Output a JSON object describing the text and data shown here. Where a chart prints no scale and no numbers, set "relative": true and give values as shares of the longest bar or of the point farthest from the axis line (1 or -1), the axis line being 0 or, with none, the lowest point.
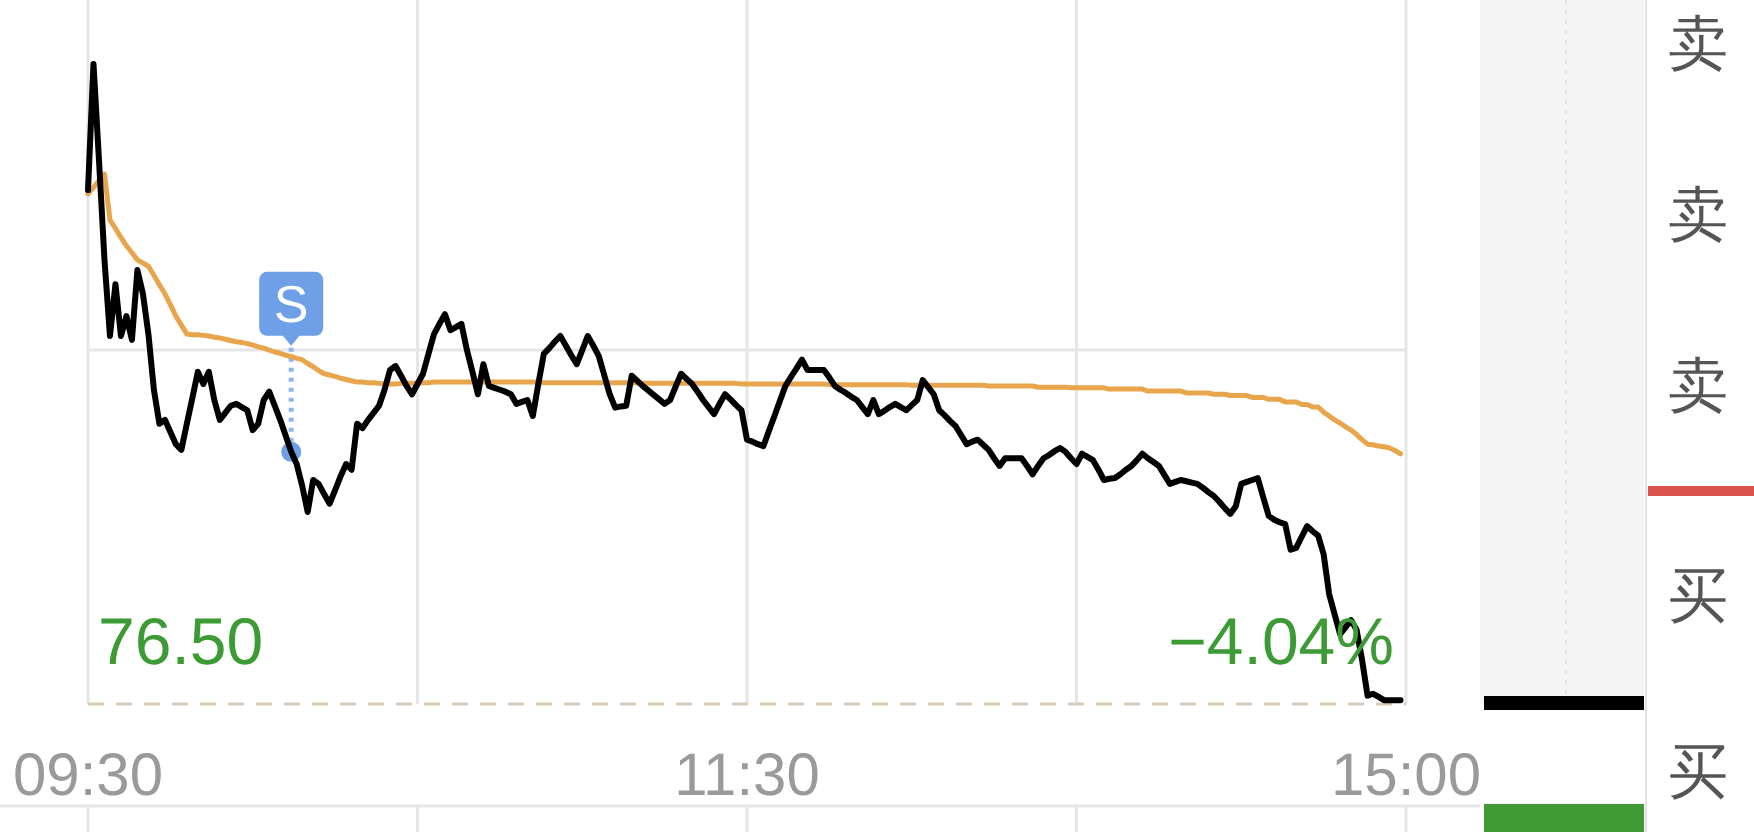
{
  "chart_data": {
    "type": "line",
    "relative": true,
    "categories": [
      "09:30",
      null,
      null,
      null,
      null,
      null,
      null,
      null,
      null,
      null,
      null,
      null,
      null,
      null,
      null,
      null,
      null,
      null,
      null,
      null,
      null,
      null,
      null,
      null,
      null,
      null,
      null,
      null,
      null,
      null,
      null,
      null,
      null,
      null,
      null,
      null,
      null,
      null,
      null,
      null,
      null,
      null,
      null,
      null,
      null,
      null,
      null,
      null,
      null,
      null,
      null,
      null,
      null,
      null,
      null,
      null,
      null,
      null,
      null,
      null,
      null,
      null,
      null,
      null,
      null,
      null,
      null,
      null,
      null,
      null,
      null,
      null,
      null,
      null,
      null,
      null,
      null,
      null,
      null,
      null,
      null,
      null,
      null,
      null,
      null,
      null,
      null,
      null,
      null,
      null,
      null,
      null,
      null,
      null,
      null,
      null,
      null,
      null,
      null,
      null,
      null,
      null,
      null,
      null,
      null,
      null,
      null,
      null,
      null,
      null,
      null,
      null,
      null,
      null,
      null,
      null,
      null,
      null,
      null,
      null,
      "11:30",
      null,
      null,
      null,
      null,
      null,
      null,
      null,
      null,
      null,
      null,
      null,
      null,
      null,
      null,
      null,
      null,
      null,
      null,
      null,
      null,
      null,
      null,
      null,
      null,
      null,
      null,
      null,
      null,
      null,
      null,
      null,
      null,
      null,
      null,
      null,
      null,
      null,
      null,
      null,
      null,
      null,
      null,
      null,
      null,
      null,
      null,
      null,
      null,
      null,
      null,
      null,
      null,
      null,
      null,
      null,
      null,
      null,
      null,
      null,
      null,
      null,
      null,
      null,
      null,
      null,
      null,
      null,
      null,
      null,
      null,
      null,
      null,
      null,
      null,
      null,
      null,
      null,
      null,
      null,
      null,
      null,
      null,
      null,
      null,
      null,
      null,
      null,
      null,
      null,
      null,
      null,
      null,
      null,
      null,
      null,
      null,
      null,
      null,
      null,
      null,
      null,
      null,
      null,
      null,
      null,
      null,
      null,
      null,
      null,
      null,
      null,
      null,
      null,
      null,
      null,
      null,
      null,
      null,
      null,
      "15:00"
    ],
    "grid": "x",
    "ref_lines": [
      {
        "axis": "y",
        "value": 0.553,
        "color": "#e6e6e6"
      }
    ],
    "series": [
      {
        "color": "#000000",
        "values": [
          0.803,
          1.0,
          0.85,
          0.694,
          0.575,
          0.656,
          0.575,
          0.606,
          0.569,
          0.678,
          0.641,
          0.578,
          0.491,
          0.438,
          0.444,
          0.425,
          0.406,
          0.397,
          0.438,
          0.478,
          0.519,
          0.5,
          0.519,
          0.475,
          0.444,
          0.455,
          0.466,
          0.469,
          0.464,
          0.459,
          0.428,
          0.438,
          0.475,
          0.488,
          0.466,
          0.444,
          0.419,
          0.394,
          0.375,
          0.341,
          0.3,
          0.35,
          0.344,
          0.328,
          0.313,
          0.334,
          0.356,
          0.375,
          0.366,
          0.438,
          0.431,
          0.444,
          0.455,
          0.466,
          0.491,
          0.522,
          0.528,
          0.513,
          0.497,
          0.484,
          0.5,
          0.516,
          0.547,
          0.578,
          0.594,
          0.609,
          0.584,
          0.589,
          0.594,
          0.553,
          0.519,
          0.484,
          0.531,
          0.497,
          0.494,
          0.491,
          0.488,
          0.484,
          0.469,
          0.472,
          0.475,
          0.45,
          0.5,
          0.547,
          0.556,
          0.566,
          0.575,
          0.56,
          0.545,
          0.531,
          0.553,
          0.575,
          0.56,
          0.544,
          0.514,
          0.484,
          0.463,
          0.465,
          0.466,
          0.513,
          0.505,
          0.497,
          0.49,
          0.483,
          0.476,
          0.469,
          0.475,
          0.496,
          0.516,
          0.508,
          0.5,
          0.488,
          0.475,
          0.464,
          0.453,
          0.469,
          0.484,
          0.476,
          0.467,
          0.459,
          0.413,
          0.41,
          0.406,
          0.403,
          0.427,
          0.45,
          0.474,
          0.497,
          0.511,
          0.524,
          0.538,
          0.522,
          0.522,
          0.522,
          0.522,
          0.51,
          0.497,
          0.491,
          0.486,
          0.48,
          0.475,
          0.464,
          0.453,
          0.475,
          0.453,
          0.458,
          0.464,
          0.469,
          0.464,
          0.459,
          0.467,
          0.475,
          0.506,
          0.495,
          0.484,
          0.459,
          0.451,
          0.442,
          0.434,
          0.42,
          0.406,
          0.41,
          0.413,
          0.405,
          0.397,
          0.384,
          0.372,
          0.384,
          0.384,
          0.384,
          0.384,
          0.372,
          0.359,
          0.372,
          0.384,
          0.389,
          0.395,
          0.4,
          0.394,
          0.384,
          0.375,
          0.391,
          0.386,
          0.381,
          0.366,
          0.35,
          0.352,
          0.353,
          0.359,
          0.366,
          0.372,
          0.381,
          0.391,
          0.384,
          0.378,
          0.372,
          0.358,
          0.344,
          0.347,
          0.35,
          0.348,
          0.346,
          0.344,
          0.338,
          0.331,
          0.325,
          0.316,
          0.306,
          0.297,
          0.309,
          0.344,
          0.347,
          0.35,
          0.353,
          0.323,
          0.294,
          0.288,
          0.284,
          0.281,
          0.241,
          0.244,
          0.261,
          0.278,
          0.27,
          0.263,
          0.234,
          0.172,
          0.14,
          0.109,
          0.12,
          0.131,
          0.116,
          0.069,
          0.013,
          0.016,
          0.011,
          0.006,
          0.006,
          0.006,
          0.006,
          null
        ]
      },
      {
        "color": "#e8a54b",
        "values": [
          0.797,
          0.807,
          0.818,
          0.828,
          0.756,
          0.743,
          0.729,
          0.716,
          0.705,
          0.694,
          0.689,
          0.684,
          0.67,
          0.655,
          0.641,
          0.624,
          0.606,
          0.592,
          0.578,
          0.577,
          0.577,
          0.576,
          0.575,
          0.573,
          0.572,
          0.57,
          0.568,
          0.566,
          0.565,
          0.563,
          0.561,
          0.558,
          0.556,
          0.553,
          0.55,
          0.548,
          0.545,
          0.543,
          0.54,
          0.538,
          0.532,
          0.527,
          0.521,
          0.516,
          0.514,
          0.512,
          0.509,
          0.507,
          0.505,
          0.503,
          0.503,
          0.502,
          0.502,
          0.501,
          0.5,
          0.5,
          0.5,
          0.501,
          0.501,
          0.501,
          0.502,
          0.502,
          0.502,
          0.503,
          0.503,
          0.503,
          0.503,
          0.503,
          0.503,
          0.503,
          0.503,
          0.503,
          0.503,
          0.503,
          0.503,
          0.503,
          0.503,
          0.503,
          0.503,
          0.503,
          0.503,
          0.503,
          0.503,
          0.502,
          0.502,
          0.502,
          0.502,
          0.502,
          0.502,
          0.502,
          0.502,
          0.502,
          0.502,
          0.502,
          0.502,
          0.502,
          0.502,
          0.502,
          0.502,
          0.502,
          0.502,
          0.501,
          0.501,
          0.501,
          0.501,
          0.501,
          0.501,
          0.501,
          0.501,
          0.501,
          0.501,
          0.501,
          0.501,
          0.501,
          0.501,
          0.501,
          0.501,
          0.501,
          0.501,
          0.5,
          0.5,
          0.5,
          0.5,
          0.5,
          0.5,
          0.5,
          0.5,
          0.5,
          0.5,
          0.5,
          0.5,
          0.5,
          0.5,
          0.5,
          0.5,
          0.499,
          0.499,
          0.499,
          0.499,
          0.499,
          0.499,
          0.499,
          0.499,
          0.499,
          0.499,
          0.499,
          0.499,
          0.499,
          0.499,
          0.499,
          0.498,
          0.498,
          0.498,
          0.498,
          0.498,
          0.498,
          0.498,
          0.498,
          0.498,
          0.498,
          0.498,
          0.498,
          0.498,
          0.498,
          0.497,
          0.497,
          0.497,
          0.497,
          0.497,
          0.497,
          0.497,
          0.497,
          0.497,
          0.495,
          0.495,
          0.495,
          0.495,
          0.495,
          0.495,
          0.494,
          0.494,
          0.494,
          0.494,
          0.494,
          0.494,
          0.494,
          0.492,
          0.492,
          0.492,
          0.492,
          0.492,
          0.492,
          0.492,
          0.489,
          0.489,
          0.489,
          0.489,
          0.489,
          0.489,
          0.489,
          0.486,
          0.486,
          0.486,
          0.486,
          0.486,
          0.484,
          0.484,
          0.484,
          0.482,
          0.482,
          0.482,
          0.482,
          0.479,
          0.479,
          0.479,
          0.476,
          0.476,
          0.476,
          0.472,
          0.472,
          0.472,
          0.468,
          0.468,
          0.464,
          0.464,
          0.456,
          0.45,
          0.444,
          0.439,
          0.433,
          0.428,
          0.421,
          0.413,
          0.406,
          0.405,
          0.403,
          0.402,
          0.4,
          0.396,
          0.391,
          null
        ]
      }
    ],
    "annotations": [
      "76.50",
      "−4.04%",
      "卖",
      "卖",
      "卖",
      "买",
      "买",
      {
        "text": "S",
        "y": 0.394
      }
    ]
  }
}
